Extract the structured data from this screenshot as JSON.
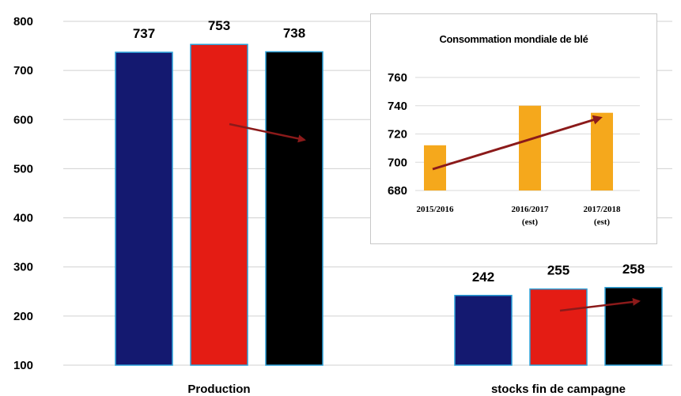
{
  "chart_data": [
    {
      "type": "bar",
      "categories": [
        "Production",
        "stocks fin de campagne"
      ],
      "series": [
        {
          "values": [
            737,
            242
          ],
          "color": "#141970"
        },
        {
          "values": [
            753,
            255
          ],
          "color": "#e41c14"
        },
        {
          "values": [
            738,
            258
          ],
          "color": "#000000"
        }
      ],
      "value_labels": [
        [
          "737",
          "242"
        ],
        [
          "753",
          "255"
        ],
        [
          "738",
          "258"
        ]
      ],
      "yticks": [
        "800",
        "700",
        "600",
        "500",
        "400",
        "300",
        "200",
        "100"
      ],
      "ylim": [
        100,
        800
      ],
      "grid": true,
      "trend_arrow_color": "#8b1a1a"
    },
    {
      "type": "bar",
      "title": "Consommation mondiale de blé",
      "categories": [
        {
          "line1": "2015/2016",
          "line2": ""
        },
        {
          "line1": "2016/2017",
          "line2": "(est)"
        },
        {
          "line1": "2017/2018",
          "line2": "(est)"
        }
      ],
      "values": [
        712,
        740,
        735
      ],
      "bar_color": "#f5a81c",
      "yticks": [
        "760",
        "740",
        "720",
        "700",
        "680"
      ],
      "ylim": [
        680,
        760
      ],
      "grid": true,
      "trend_arrow_color": "#8b1a1a"
    }
  ]
}
